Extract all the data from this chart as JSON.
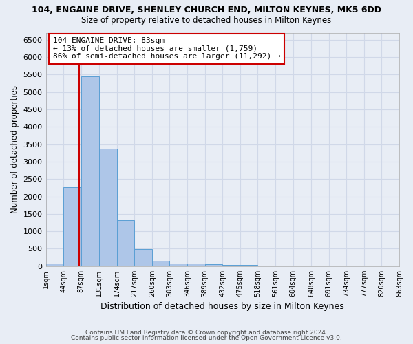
{
  "title": "104, ENGAINE DRIVE, SHENLEY CHURCH END, MILTON KEYNES, MK5 6DD",
  "subtitle": "Size of property relative to detached houses in Milton Keynes",
  "xlabel": "Distribution of detached houses by size in Milton Keynes",
  "ylabel": "Number of detached properties",
  "footer_line1": "Contains HM Land Registry data © Crown copyright and database right 2024.",
  "footer_line2": "Contains public sector information licensed under the Open Government Licence v3.0.",
  "bar_edges": [
    1,
    44,
    87,
    131,
    174,
    217,
    260,
    303,
    346,
    389,
    432,
    475,
    518,
    561,
    604,
    648,
    691,
    734,
    777,
    820,
    863
  ],
  "bar_values": [
    70,
    2270,
    5450,
    3380,
    1310,
    480,
    160,
    80,
    75,
    55,
    40,
    30,
    20,
    15,
    10,
    8,
    5,
    4,
    3,
    2
  ],
  "bar_color": "#aec6e8",
  "bar_edge_color": "#5a9fd4",
  "grid_color": "#d0d8e8",
  "background_color": "#e8edf5",
  "annotation_line1": "104 ENGAINE DRIVE: 83sqm",
  "annotation_line2": "← 13% of detached houses are smaller (1,759)",
  "annotation_line3": "86% of semi-detached houses are larger (11,292) →",
  "annotation_box_color": "#ffffff",
  "annotation_border_color": "#cc0000",
  "redline_x": 83,
  "redline_color": "#cc0000",
  "ylim": [
    0,
    6700
  ],
  "yticks": [
    0,
    500,
    1000,
    1500,
    2000,
    2500,
    3000,
    3500,
    4000,
    4500,
    5000,
    5500,
    6000,
    6500
  ],
  "xlim_min": 1,
  "xlim_max": 863,
  "sqm_labels": [
    "1sqm",
    "44sqm",
    "87sqm",
    "131sqm",
    "174sqm",
    "217sqm",
    "260sqm",
    "303sqm",
    "346sqm",
    "389sqm",
    "432sqm",
    "475sqm",
    "518sqm",
    "561sqm",
    "604sqm",
    "648sqm",
    "691sqm",
    "734sqm",
    "777sqm",
    "820sqm",
    "863sqm"
  ]
}
